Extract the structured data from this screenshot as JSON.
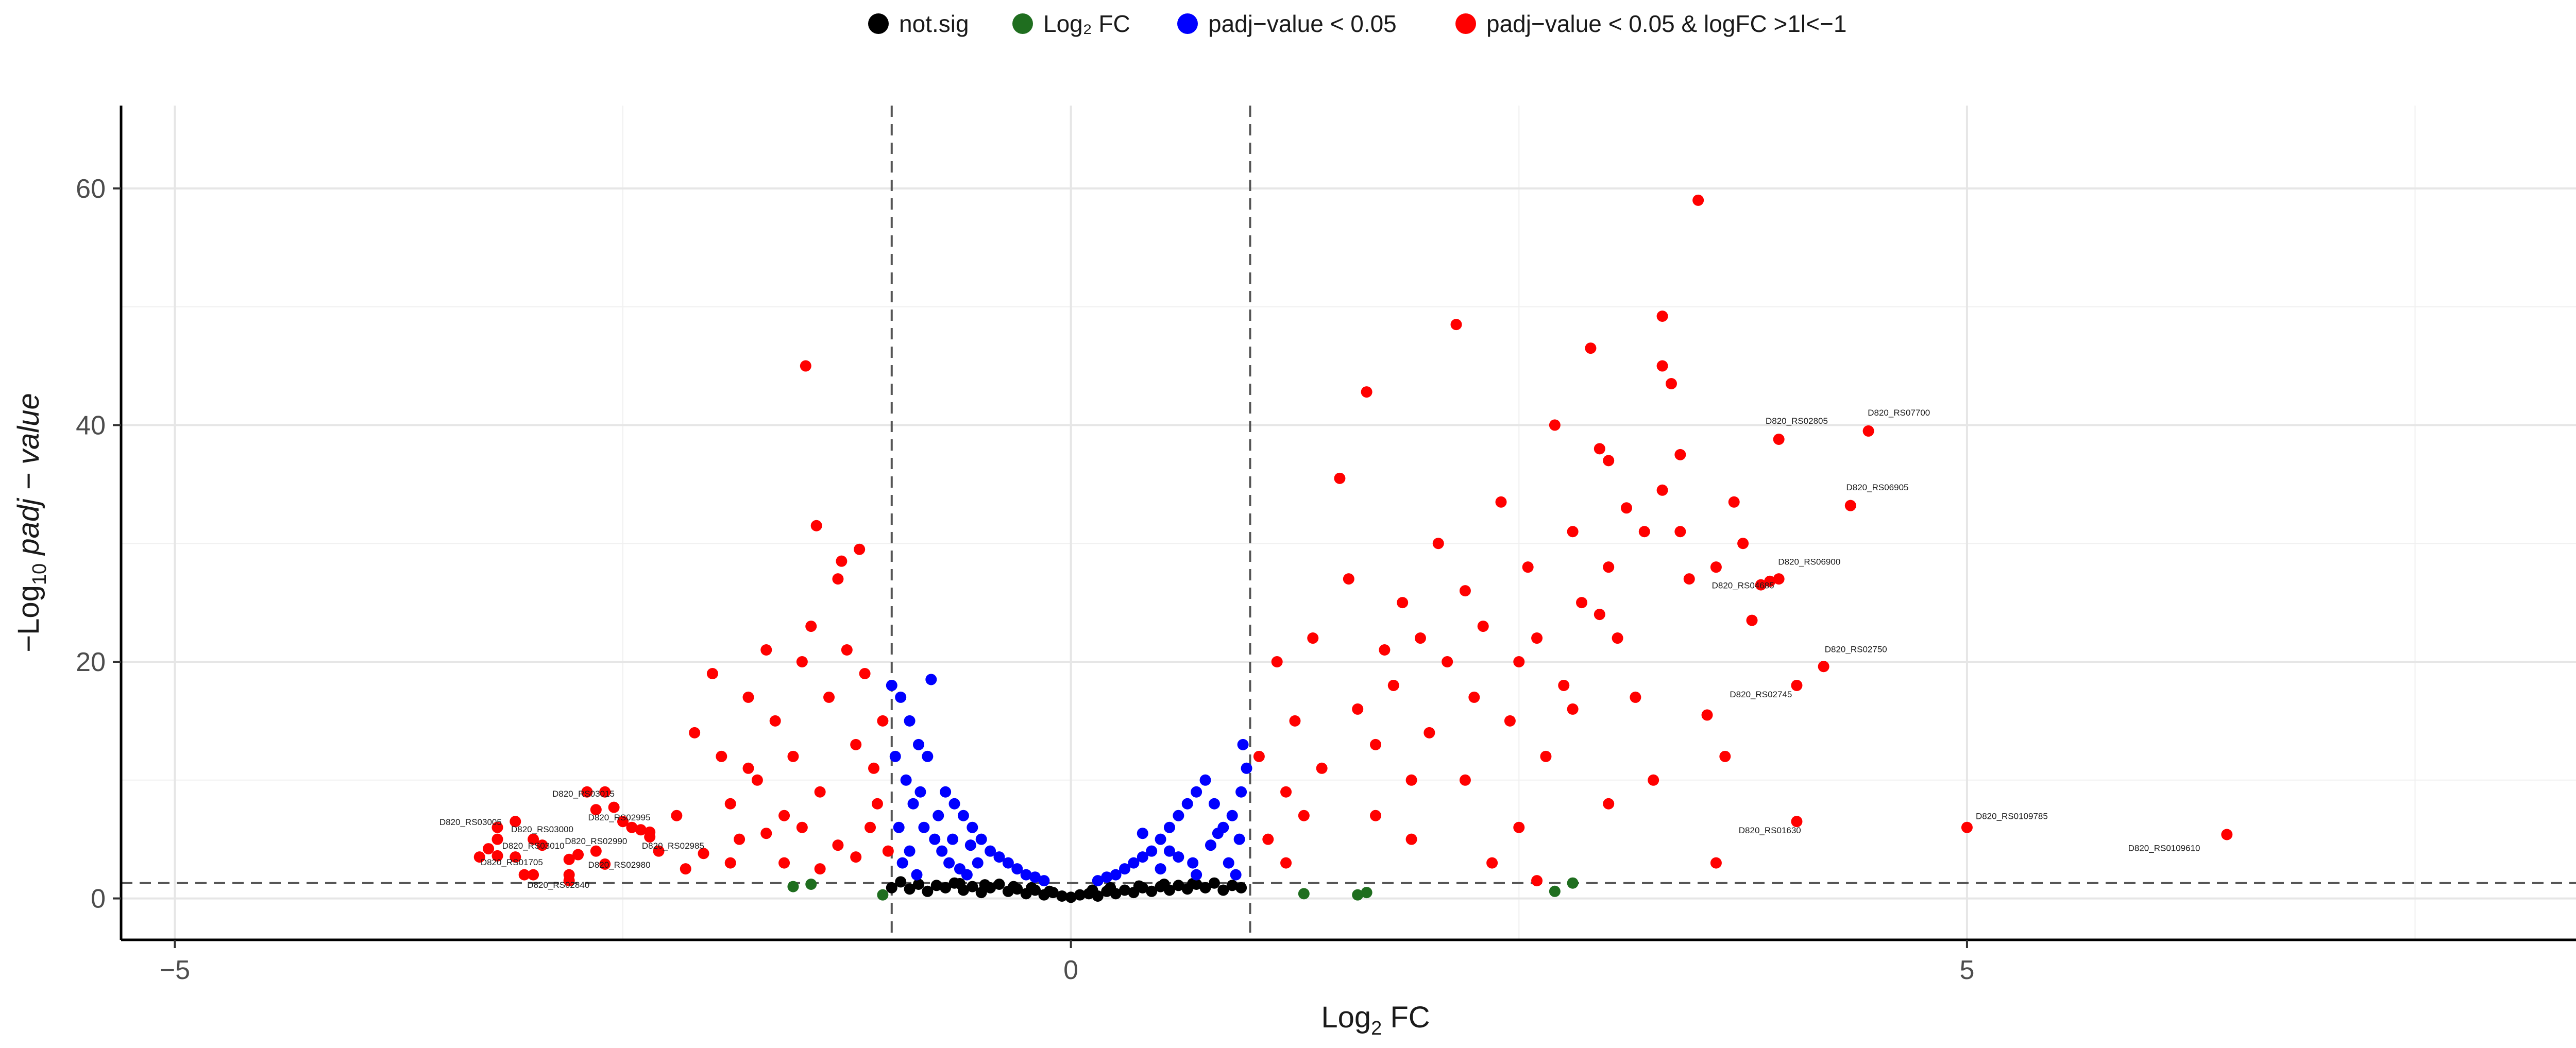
{
  "chart_data": {
    "type": "scatter",
    "xlabel": "Log2 FC",
    "ylabel": "-Log10 padj - value",
    "xlim": [
      -5.3,
      8.7
    ],
    "ylim": [
      -3.5,
      67
    ],
    "x_ticks": [
      -5,
      0,
      5
    ],
    "y_ticks": [
      0,
      20,
      40,
      60
    ],
    "x_minor_grid": [
      -2.5,
      2.5,
      7.5
    ],
    "y_minor_grid": [
      10,
      30,
      50
    ],
    "grid": true,
    "legend_position": "top",
    "thresholds": {
      "logfc": [
        -1,
        1
      ],
      "neg_log10_padj": 1.3
    },
    "series": [
      {
        "name": "not.sig",
        "color": "#000000",
        "points": [
          [
            -1.0,
            0.9
          ],
          [
            -0.95,
            1.4
          ],
          [
            -0.9,
            0.8
          ],
          [
            -0.85,
            1.2
          ],
          [
            -0.8,
            0.6
          ],
          [
            -0.75,
            1.1
          ],
          [
            -0.7,
            0.9
          ],
          [
            -0.65,
            1.3
          ],
          [
            -0.6,
            0.7
          ],
          [
            -0.55,
            1.0
          ],
          [
            -0.5,
            0.5
          ],
          [
            -0.45,
            0.9
          ],
          [
            -0.4,
            1.2
          ],
          [
            -0.35,
            0.6
          ],
          [
            -0.3,
            0.8
          ],
          [
            -0.25,
            0.4
          ],
          [
            -0.2,
            0.7
          ],
          [
            -0.15,
            0.3
          ],
          [
            -0.1,
            0.5
          ],
          [
            -0.05,
            0.2
          ],
          [
            0.0,
            0.1
          ],
          [
            0.05,
            0.3
          ],
          [
            0.1,
            0.4
          ],
          [
            0.15,
            0.2
          ],
          [
            0.2,
            0.6
          ],
          [
            0.25,
            0.4
          ],
          [
            0.3,
            0.7
          ],
          [
            0.35,
            0.5
          ],
          [
            0.4,
            0.9
          ],
          [
            0.45,
            0.6
          ],
          [
            0.5,
            1.0
          ],
          [
            0.55,
            0.7
          ],
          [
            0.6,
            1.1
          ],
          [
            0.65,
            0.8
          ],
          [
            0.7,
            1.2
          ],
          [
            0.75,
            0.9
          ],
          [
            0.8,
            1.3
          ],
          [
            0.85,
            0.7
          ],
          [
            0.9,
            1.1
          ],
          [
            0.95,
            0.9
          ],
          [
            -0.62,
            1.25
          ],
          [
            -0.48,
            1.15
          ],
          [
            -0.32,
            1.0
          ],
          [
            -0.22,
            0.9
          ],
          [
            -0.12,
            0.6
          ],
          [
            0.12,
            0.7
          ],
          [
            0.22,
            0.9
          ],
          [
            0.38,
            1.05
          ],
          [
            0.52,
            1.2
          ],
          [
            0.68,
            1.25
          ]
        ]
      },
      {
        "name": "Log₂ FC",
        "color": "#1f6e1f",
        "points": [
          [
            -1.55,
            1.0
          ],
          [
            -1.45,
            1.2
          ],
          [
            -1.05,
            0.3
          ],
          [
            1.3,
            0.4
          ],
          [
            1.6,
            0.3
          ],
          [
            1.65,
            0.5
          ],
          [
            2.7,
            0.6
          ],
          [
            2.8,
            1.3
          ]
        ]
      },
      {
        "name": "padj−value < 0.05",
        "color": "#0000ff",
        "points": [
          [
            -1.0,
            18.0
          ],
          [
            -0.95,
            17.0
          ],
          [
            -0.9,
            15.0
          ],
          [
            -0.85,
            13.0
          ],
          [
            -0.8,
            12.0
          ],
          [
            -0.78,
            18.5
          ],
          [
            -0.7,
            9.0
          ],
          [
            -0.65,
            8.0
          ],
          [
            -0.6,
            7.0
          ],
          [
            -0.55,
            6.0
          ],
          [
            -0.5,
            5.0
          ],
          [
            -0.45,
            4.0
          ],
          [
            -0.4,
            3.5
          ],
          [
            -0.35,
            3.0
          ],
          [
            -0.3,
            2.5
          ],
          [
            -0.25,
            2.0
          ],
          [
            -0.2,
            1.8
          ],
          [
            -0.15,
            1.5
          ],
          [
            -0.98,
            12.0
          ],
          [
            -0.92,
            10.0
          ],
          [
            -0.88,
            8.0
          ],
          [
            -0.82,
            6.0
          ],
          [
            -0.76,
            5.0
          ],
          [
            -0.72,
            4.0
          ],
          [
            -0.68,
            3.0
          ],
          [
            -0.62,
            2.5
          ],
          [
            -0.58,
            2.0
          ],
          [
            -0.52,
            3.0
          ],
          [
            -0.96,
            6.0
          ],
          [
            -0.9,
            4.0
          ],
          [
            -0.86,
            2.0
          ],
          [
            -0.94,
            3.0
          ],
          [
            -0.84,
            9.0
          ],
          [
            -0.74,
            7.0
          ],
          [
            -0.66,
            5.0
          ],
          [
            -0.56,
            4.5
          ],
          [
            0.15,
            1.5
          ],
          [
            0.2,
            1.8
          ],
          [
            0.25,
            2.0
          ],
          [
            0.3,
            2.5
          ],
          [
            0.35,
            3.0
          ],
          [
            0.4,
            3.5
          ],
          [
            0.45,
            4.0
          ],
          [
            0.5,
            5.0
          ],
          [
            0.55,
            6.0
          ],
          [
            0.6,
            7.0
          ],
          [
            0.65,
            8.0
          ],
          [
            0.7,
            9.0
          ],
          [
            0.75,
            10.0
          ],
          [
            0.8,
            8.0
          ],
          [
            0.85,
            6.0
          ],
          [
            0.9,
            7.0
          ],
          [
            0.95,
            9.0
          ],
          [
            0.98,
            11.0
          ],
          [
            0.96,
            13.0
          ],
          [
            0.4,
            5.5
          ],
          [
            0.55,
            4.0
          ],
          [
            0.68,
            3.0
          ],
          [
            0.78,
            4.5
          ],
          [
            0.88,
            3.0
          ],
          [
            0.92,
            2.0
          ],
          [
            0.7,
            2.0
          ],
          [
            0.6,
            3.5
          ],
          [
            0.5,
            2.5
          ],
          [
            0.82,
            5.5
          ],
          [
            0.94,
            5.0
          ]
        ]
      },
      {
        "name": "padj−value < 0.05 & logFC >1l<−1",
        "color": "#ff0000",
        "points": [
          [
            -3.2,
            6.0
          ],
          [
            -3.1,
            3.5
          ],
          [
            -3.0,
            5.0
          ],
          [
            -2.95,
            4.5
          ],
          [
            -2.8,
            2.0
          ],
          [
            -2.75,
            3.7
          ],
          [
            -2.7,
            9.0
          ],
          [
            -2.65,
            7.5
          ],
          [
            -2.5,
            6.5
          ],
          [
            -2.4,
            5.8
          ],
          [
            -2.3,
            4.0
          ],
          [
            -2.15,
            2.5
          ],
          [
            -2.05,
            3.8
          ],
          [
            -2.1,
            14.0
          ],
          [
            -2.0,
            19.0
          ],
          [
            -1.95,
            12.0
          ],
          [
            -1.9,
            8.0
          ],
          [
            -1.85,
            5.0
          ],
          [
            -1.8,
            17.0
          ],
          [
            -1.75,
            10.0
          ],
          [
            -1.7,
            21.0
          ],
          [
            -1.65,
            15.0
          ],
          [
            -1.6,
            7.0
          ],
          [
            -1.55,
            12.0
          ],
          [
            -1.5,
            20.0
          ],
          [
            -1.48,
            45.0
          ],
          [
            -1.45,
            23.0
          ],
          [
            -1.42,
            31.5
          ],
          [
            -1.4,
            9.0
          ],
          [
            -1.35,
            17.0
          ],
          [
            -1.3,
            27.0
          ],
          [
            -1.28,
            28.5
          ],
          [
            -1.25,
            21.0
          ],
          [
            -1.2,
            13.0
          ],
          [
            -1.18,
            29.5
          ],
          [
            -1.15,
            19.0
          ],
          [
            -1.12,
            6.0
          ],
          [
            -1.1,
            11.0
          ],
          [
            -1.08,
            8.0
          ],
          [
            -1.05,
            15.0
          ],
          [
            -1.02,
            4.0
          ],
          [
            -1.6,
            3.0
          ],
          [
            -1.7,
            5.5
          ],
          [
            -1.3,
            4.5
          ],
          [
            -1.9,
            3.0
          ],
          [
            -2.2,
            7.0
          ],
          [
            -1.4,
            2.5
          ],
          [
            -1.2,
            3.5
          ],
          [
            -1.5,
            6.0
          ],
          [
            -1.8,
            11.0
          ],
          [
            1.05,
            12.0
          ],
          [
            1.1,
            5.0
          ],
          [
            1.15,
            20.0
          ],
          [
            1.2,
            9.0
          ],
          [
            1.25,
            15.0
          ],
          [
            1.3,
            7.0
          ],
          [
            1.35,
            22.0
          ],
          [
            1.4,
            11.0
          ],
          [
            1.5,
            35.5
          ],
          [
            1.55,
            27.0
          ],
          [
            1.6,
            16.0
          ],
          [
            1.65,
            42.8
          ],
          [
            1.7,
            13.0
          ],
          [
            1.75,
            21.0
          ],
          [
            1.8,
            18.0
          ],
          [
            1.85,
            25.0
          ],
          [
            1.9,
            10.0
          ],
          [
            1.95,
            22.0
          ],
          [
            2.0,
            14.0
          ],
          [
            2.05,
            30.0
          ],
          [
            2.1,
            20.0
          ],
          [
            2.15,
            48.5
          ],
          [
            2.2,
            26.0
          ],
          [
            2.25,
            17.0
          ],
          [
            2.3,
            23.0
          ],
          [
            2.4,
            33.5
          ],
          [
            2.45,
            15.0
          ],
          [
            2.5,
            20.0
          ],
          [
            2.55,
            28.0
          ],
          [
            2.6,
            22.0
          ],
          [
            2.65,
            12.0
          ],
          [
            2.7,
            40.0
          ],
          [
            2.75,
            18.0
          ],
          [
            2.8,
            31.0
          ],
          [
            2.85,
            25.0
          ],
          [
            2.9,
            46.5
          ],
          [
            2.95,
            38.0
          ],
          [
            3.0,
            28.0
          ],
          [
            3.05,
            22.0
          ],
          [
            3.1,
            33.0
          ],
          [
            3.15,
            17.0
          ],
          [
            3.2,
            31.0
          ],
          [
            3.25,
            10.0
          ],
          [
            3.3,
            45.0
          ],
          [
            3.35,
            43.5
          ],
          [
            3.4,
            37.5
          ],
          [
            3.45,
            27.0
          ],
          [
            3.5,
            59.0
          ],
          [
            3.55,
            15.5
          ],
          [
            3.6,
            28.0
          ],
          [
            3.7,
            33.5
          ],
          [
            3.8,
            23.5
          ],
          [
            3.85,
            26.5
          ],
          [
            3.75,
            30.0
          ],
          [
            3.65,
            12.0
          ],
          [
            3.0,
            8.0
          ],
          [
            2.5,
            6.0
          ],
          [
            2.8,
            16.0
          ],
          [
            3.3,
            34.5
          ],
          [
            3.4,
            31.0
          ],
          [
            2.35,
            3.0
          ],
          [
            2.6,
            1.5
          ],
          [
            1.7,
            7.0
          ],
          [
            1.2,
            3.0
          ],
          [
            3.3,
            49.2
          ],
          [
            3.0,
            37.0
          ],
          [
            3.6,
            3.0
          ],
          [
            2.2,
            10.0
          ],
          [
            1.9,
            5.0
          ],
          [
            2.95,
            24.0
          ],
          [
            -3.2,
            3.6
          ],
          [
            -3.1,
            6.5
          ],
          [
            -2.8,
            3.3
          ],
          [
            -2.6,
            2.9
          ],
          [
            -2.35,
            5.6
          ],
          [
            -3.05,
            2.0
          ],
          [
            -2.6,
            9.0
          ],
          [
            -2.55,
            7.7
          ],
          [
            -3.2,
            5.0
          ],
          [
            -3.25,
            4.2
          ],
          [
            -2.35,
            5.2
          ],
          [
            -2.45,
            6.0
          ],
          [
            -2.65,
            4.0
          ],
          [
            -3.3,
            3.5
          ],
          [
            -3.0,
            2.0
          ],
          [
            -2.8,
            1.5
          ],
          [
            3.95,
            38.8
          ],
          [
            4.45,
            39.5
          ],
          [
            4.35,
            33.2
          ],
          [
            3.95,
            27.0
          ],
          [
            3.9,
            26.8
          ],
          [
            4.2,
            19.6
          ],
          [
            4.05,
            18.0
          ],
          [
            4.05,
            6.5
          ],
          [
            5.0,
            6.0
          ],
          [
            6.45,
            5.4
          ]
        ]
      }
    ],
    "annotations": [
      {
        "text": "D820_RS03015",
        "x": -2.72,
        "y": 8.6
      },
      {
        "text": "D820_RS03005",
        "x": -3.35,
        "y": 6.2
      },
      {
        "text": "D820_RS03000",
        "x": -2.95,
        "y": 5.6
      },
      {
        "text": "D820_RS02995",
        "x": -2.52,
        "y": 6.6
      },
      {
        "text": "D820_RS03010",
        "x": -3.0,
        "y": 4.2
      },
      {
        "text": "D820_RS02990",
        "x": -2.65,
        "y": 4.6
      },
      {
        "text": "D820_RS02985",
        "x": -2.22,
        "y": 4.2
      },
      {
        "text": "D820_RS01705",
        "x": -3.12,
        "y": 2.8
      },
      {
        "text": "D820_RS02980",
        "x": -2.52,
        "y": 2.6
      },
      {
        "text": "D820_RS02840",
        "x": -2.86,
        "y": 0.9
      },
      {
        "text": "D820_RS02805",
        "x": 4.05,
        "y": 40.1
      },
      {
        "text": "D820_RS07700",
        "x": 4.62,
        "y": 40.8
      },
      {
        "text": "D820_RS06905",
        "x": 4.5,
        "y": 34.5
      },
      {
        "text": "D820_RS06900",
        "x": 4.12,
        "y": 28.2
      },
      {
        "text": "D820_RS04685",
        "x": 3.75,
        "y": 26.2
      },
      {
        "text": "D820_RS02750",
        "x": 4.38,
        "y": 20.8
      },
      {
        "text": "D820_RS02745",
        "x": 3.85,
        "y": 17.0
      },
      {
        "text": "D820_RS01630",
        "x": 3.9,
        "y": 5.5
      },
      {
        "text": "D820_RS0109785",
        "x": 5.25,
        "y": 6.7
      },
      {
        "text": "D820_RS0109610",
        "x": 6.1,
        "y": 4.0
      }
    ]
  }
}
